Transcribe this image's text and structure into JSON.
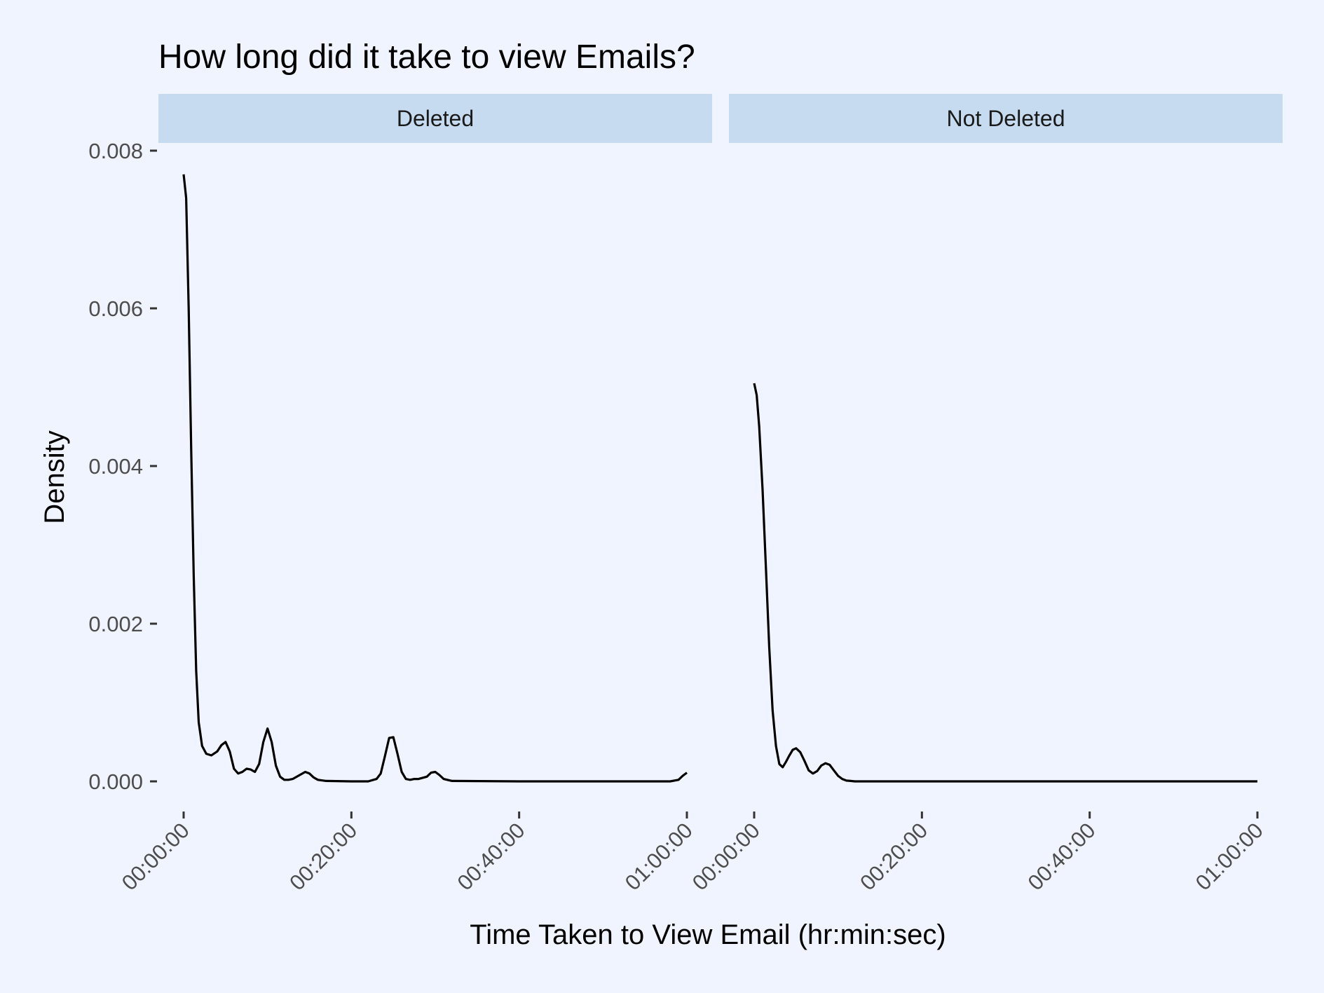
{
  "chart_data": {
    "type": "line",
    "title": "How long did it take to view Emails?",
    "xlabel": "Time Taken to View Email (hr:min:sec)",
    "ylabel": "Density",
    "x_unit": "minutes",
    "xlim": [
      0,
      60
    ],
    "ylim": [
      0,
      0.008
    ],
    "x_ticks": [
      {
        "value": 0,
        "label": "00:00:00"
      },
      {
        "value": 20,
        "label": "00:20:00"
      },
      {
        "value": 40,
        "label": "00:40:00"
      },
      {
        "value": 60,
        "label": "01:00:00"
      }
    ],
    "y_ticks": [
      {
        "value": 0,
        "label": "0.000"
      },
      {
        "value": 0.002,
        "label": "0.002"
      },
      {
        "value": 0.004,
        "label": "0.004"
      },
      {
        "value": 0.006,
        "label": "0.006"
      },
      {
        "value": 0.008,
        "label": "0.008"
      }
    ],
    "grid": false,
    "legend": "none",
    "facets": [
      {
        "label": "Deleted",
        "x": [
          0,
          0.3,
          0.6,
          0.9,
          1.2,
          1.5,
          1.8,
          2.2,
          2.7,
          3.3,
          4,
          4.5,
          5,
          5.5,
          6,
          6.5,
          7,
          7.5,
          8,
          8.5,
          9,
          9.5,
          10,
          10.5,
          11,
          11.5,
          12,
          12.5,
          13,
          14,
          14.5,
          15,
          15.5,
          16,
          17,
          20,
          22,
          23,
          23.5,
          24,
          24.5,
          25,
          25.5,
          26,
          26.5,
          27,
          27.5,
          28,
          29,
          29.5,
          30,
          30.5,
          31,
          32,
          40,
          50,
          58,
          59,
          59.5,
          60
        ],
        "y": [
          0.0077,
          0.0074,
          0.006,
          0.0042,
          0.0026,
          0.0014,
          0.00075,
          0.00045,
          0.00035,
          0.00033,
          0.00038,
          0.00046,
          0.0005,
          0.00038,
          0.00016,
          0.0001,
          0.00012,
          0.00016,
          0.00015,
          0.00012,
          0.00022,
          0.0005,
          0.00067,
          0.0005,
          0.0002,
          6e-05,
          2e-05,
          2e-05,
          3e-05,
          9e-05,
          0.00012,
          0.0001,
          5e-05,
          2e-05,
          5e-06,
          0,
          0,
          3e-05,
          0.0001,
          0.00032,
          0.00055,
          0.00056,
          0.00035,
          0.00012,
          3e-05,
          2e-05,
          3e-05,
          3e-05,
          6e-05,
          0.00011,
          0.00012,
          8e-05,
          3e-05,
          5e-06,
          0,
          0,
          0,
          2e-05,
          7e-05,
          0.00011
        ]
      },
      {
        "label": "Not Deleted",
        "x": [
          0,
          0.3,
          0.6,
          1,
          1.4,
          1.8,
          2.2,
          2.6,
          3,
          3.4,
          3.8,
          4.2,
          4.6,
          5,
          5.5,
          6,
          6.5,
          7,
          7.5,
          8,
          8.5,
          9,
          9.5,
          10,
          10.5,
          11,
          11.5,
          12,
          12.5,
          13,
          14,
          16,
          20,
          30,
          40,
          50,
          60
        ],
        "y": [
          0.00505,
          0.0049,
          0.0045,
          0.0037,
          0.0027,
          0.0017,
          0.0009,
          0.00045,
          0.00022,
          0.00018,
          0.00025,
          0.00033,
          0.0004,
          0.00042,
          0.00037,
          0.00026,
          0.00014,
          0.0001,
          0.00013,
          0.0002,
          0.00023,
          0.00021,
          0.00014,
          7e-05,
          3e-05,
          1e-05,
          5e-06,
          0,
          0,
          0,
          0,
          0,
          0,
          0,
          0,
          0,
          0
        ]
      }
    ]
  }
}
